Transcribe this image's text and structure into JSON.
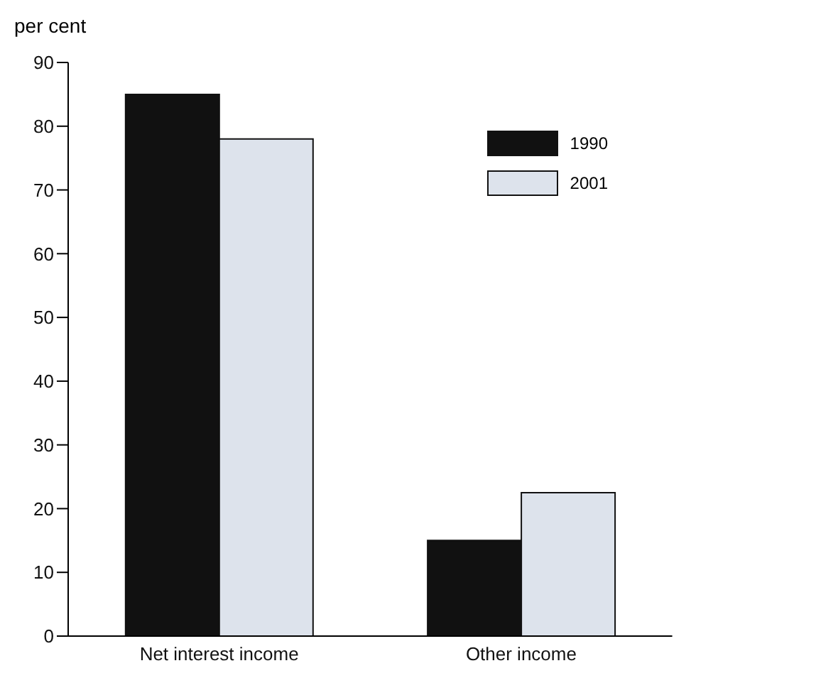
{
  "chart_data": {
    "type": "bar",
    "ylabel": "per cent",
    "categories": [
      "Net interest income",
      "Other income"
    ],
    "series": [
      {
        "name": "1990",
        "color": "#111111",
        "values": [
          85,
          15
        ]
      },
      {
        "name": "2001",
        "color": "#dde3ec",
        "values": [
          78,
          22.5
        ]
      }
    ],
    "ylim": [
      0,
      90
    ],
    "yticks": [
      0,
      10,
      20,
      30,
      40,
      50,
      60,
      70,
      80,
      90
    ],
    "grid": false,
    "legend": "top right"
  }
}
